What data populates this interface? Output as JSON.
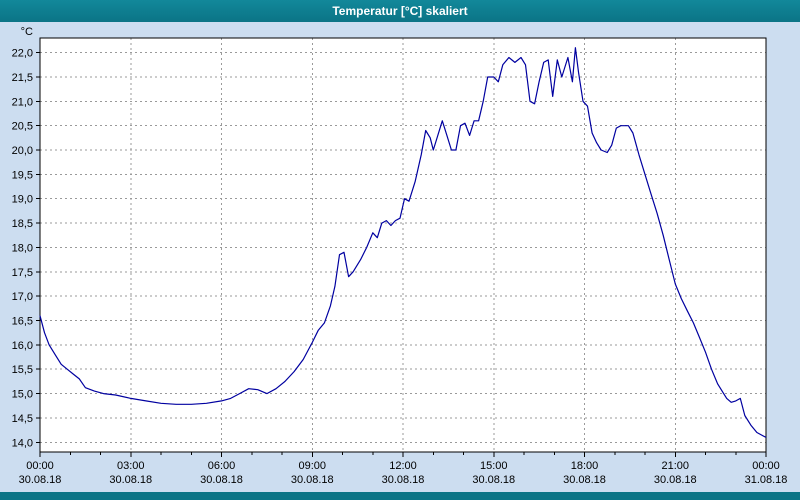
{
  "window": {
    "title": "Temperatur [°C] skaliert"
  },
  "colors": {
    "titlebar": "#0b7486",
    "background": "#ccddf0",
    "plot_background": "#ffffff",
    "grid": "#9a9a9a",
    "axis": "#000000",
    "line": "#0000a0"
  },
  "chart_data": {
    "type": "line",
    "title": "Temperatur [°C] skaliert",
    "unit_label": "°C",
    "xlabel": "",
    "ylabel": "°C",
    "grid": true,
    "legend": "none",
    "xlim_hours": [
      0,
      24
    ],
    "ylim": [
      13.8,
      22.3
    ],
    "y_ticks": [
      {
        "v": 22.0,
        "label": "22,0"
      },
      {
        "v": 21.5,
        "label": "21,5"
      },
      {
        "v": 21.0,
        "label": "21,0"
      },
      {
        "v": 20.5,
        "label": "20,5"
      },
      {
        "v": 20.0,
        "label": "20,0"
      },
      {
        "v": 19.5,
        "label": "19,5"
      },
      {
        "v": 19.0,
        "label": "19,0"
      },
      {
        "v": 18.5,
        "label": "18,5"
      },
      {
        "v": 18.0,
        "label": "18,0"
      },
      {
        "v": 17.5,
        "label": "17,5"
      },
      {
        "v": 17.0,
        "label": "17,0"
      },
      {
        "v": 16.5,
        "label": "16,5"
      },
      {
        "v": 16.0,
        "label": "16,0"
      },
      {
        "v": 15.5,
        "label": "15,5"
      },
      {
        "v": 15.0,
        "label": "15,0"
      },
      {
        "v": 14.5,
        "label": "14,5"
      },
      {
        "v": 14.0,
        "label": "14,0"
      }
    ],
    "x_ticks": [
      {
        "h": 0,
        "time": "00:00",
        "date": "30.08.18"
      },
      {
        "h": 3,
        "time": "03:00",
        "date": "30.08.18"
      },
      {
        "h": 6,
        "time": "06:00",
        "date": "30.08.18"
      },
      {
        "h": 9,
        "time": "09:00",
        "date": "30.08.18"
      },
      {
        "h": 12,
        "time": "12:00",
        "date": "30.08.18"
      },
      {
        "h": 15,
        "time": "15:00",
        "date": "30.08.18"
      },
      {
        "h": 18,
        "time": "18:00",
        "date": "30.08.18"
      },
      {
        "h": 21,
        "time": "21:00",
        "date": "30.08.18"
      },
      {
        "h": 24,
        "time": "00:00",
        "date": "31.08.18"
      }
    ],
    "series": [
      {
        "name": "Temperatur",
        "points": [
          [
            0.0,
            16.6
          ],
          [
            0.15,
            16.25
          ],
          [
            0.3,
            16.0
          ],
          [
            0.5,
            15.8
          ],
          [
            0.7,
            15.6
          ],
          [
            0.9,
            15.5
          ],
          [
            1.1,
            15.4
          ],
          [
            1.3,
            15.3
          ],
          [
            1.5,
            15.12
          ],
          [
            1.8,
            15.05
          ],
          [
            2.1,
            15.0
          ],
          [
            2.5,
            14.97
          ],
          [
            3.0,
            14.9
          ],
          [
            3.5,
            14.85
          ],
          [
            4.0,
            14.8
          ],
          [
            4.5,
            14.78
          ],
          [
            5.0,
            14.78
          ],
          [
            5.5,
            14.8
          ],
          [
            6.0,
            14.85
          ],
          [
            6.3,
            14.9
          ],
          [
            6.6,
            15.0
          ],
          [
            6.9,
            15.1
          ],
          [
            7.2,
            15.08
          ],
          [
            7.5,
            15.0
          ],
          [
            7.8,
            15.1
          ],
          [
            8.1,
            15.25
          ],
          [
            8.4,
            15.45
          ],
          [
            8.7,
            15.7
          ],
          [
            9.0,
            16.05
          ],
          [
            9.2,
            16.3
          ],
          [
            9.4,
            16.45
          ],
          [
            9.6,
            16.8
          ],
          [
            9.75,
            17.2
          ],
          [
            9.9,
            17.85
          ],
          [
            10.05,
            17.9
          ],
          [
            10.2,
            17.4
          ],
          [
            10.35,
            17.5
          ],
          [
            10.6,
            17.75
          ],
          [
            10.8,
            18.0
          ],
          [
            11.0,
            18.3
          ],
          [
            11.15,
            18.2
          ],
          [
            11.3,
            18.5
          ],
          [
            11.45,
            18.55
          ],
          [
            11.6,
            18.45
          ],
          [
            11.75,
            18.55
          ],
          [
            11.9,
            18.6
          ],
          [
            12.05,
            19.0
          ],
          [
            12.2,
            18.95
          ],
          [
            12.4,
            19.35
          ],
          [
            12.6,
            19.9
          ],
          [
            12.75,
            20.4
          ],
          [
            12.9,
            20.25
          ],
          [
            13.0,
            20.0
          ],
          [
            13.15,
            20.3
          ],
          [
            13.3,
            20.6
          ],
          [
            13.45,
            20.3
          ],
          [
            13.6,
            20.0
          ],
          [
            13.75,
            20.0
          ],
          [
            13.9,
            20.5
          ],
          [
            14.05,
            20.55
          ],
          [
            14.2,
            20.3
          ],
          [
            14.35,
            20.6
          ],
          [
            14.5,
            20.6
          ],
          [
            14.65,
            21.0
          ],
          [
            14.8,
            21.5
          ],
          [
            15.0,
            21.5
          ],
          [
            15.15,
            21.4
          ],
          [
            15.3,
            21.75
          ],
          [
            15.5,
            21.9
          ],
          [
            15.7,
            21.8
          ],
          [
            15.9,
            21.9
          ],
          [
            16.05,
            21.75
          ],
          [
            16.2,
            21.0
          ],
          [
            16.35,
            20.95
          ],
          [
            16.5,
            21.4
          ],
          [
            16.65,
            21.8
          ],
          [
            16.8,
            21.85
          ],
          [
            16.95,
            21.1
          ],
          [
            17.1,
            21.85
          ],
          [
            17.25,
            21.5
          ],
          [
            17.45,
            21.9
          ],
          [
            17.6,
            21.4
          ],
          [
            17.7,
            22.1
          ],
          [
            17.8,
            21.6
          ],
          [
            17.95,
            21.0
          ],
          [
            18.1,
            20.9
          ],
          [
            18.25,
            20.35
          ],
          [
            18.4,
            20.15
          ],
          [
            18.55,
            20.0
          ],
          [
            18.75,
            19.95
          ],
          [
            18.9,
            20.1
          ],
          [
            19.05,
            20.45
          ],
          [
            19.2,
            20.5
          ],
          [
            19.45,
            20.5
          ],
          [
            19.6,
            20.35
          ],
          [
            19.8,
            19.9
          ],
          [
            20.0,
            19.5
          ],
          [
            20.2,
            19.1
          ],
          [
            20.4,
            18.7
          ],
          [
            20.6,
            18.25
          ],
          [
            20.8,
            17.75
          ],
          [
            21.0,
            17.25
          ],
          [
            21.2,
            16.95
          ],
          [
            21.4,
            16.7
          ],
          [
            21.6,
            16.45
          ],
          [
            21.8,
            16.15
          ],
          [
            22.0,
            15.85
          ],
          [
            22.2,
            15.5
          ],
          [
            22.4,
            15.2
          ],
          [
            22.55,
            15.05
          ],
          [
            22.7,
            14.9
          ],
          [
            22.85,
            14.82
          ],
          [
            23.0,
            14.85
          ],
          [
            23.15,
            14.9
          ],
          [
            23.3,
            14.55
          ],
          [
            23.5,
            14.35
          ],
          [
            23.7,
            14.2
          ],
          [
            23.85,
            14.15
          ],
          [
            24.0,
            14.1
          ]
        ]
      }
    ]
  }
}
